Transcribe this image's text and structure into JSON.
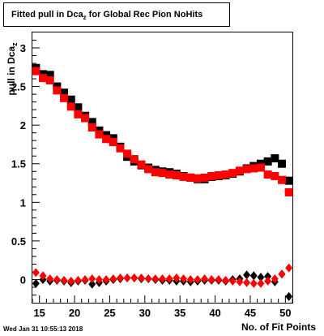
{
  "title_main": "Fitted pull in Dca",
  "title_sub": "z",
  "title_rest": " for Global Rec Pion NoHits",
  "ylabel_main": "pull in Dca",
  "ylabel_sub": "z",
  "xlabel": "No. of Fit Points",
  "timestamp": "Wed Jan 31 10:55:13 2018",
  "chart_data": {
    "type": "scatter",
    "title": "Fitted pull in Dca_z for Global Rec Pion NoHits",
    "xlabel": "No. of Fit Points",
    "ylabel": "pull in Dca_z",
    "xlim": [
      14,
      51
    ],
    "ylim": [
      -0.3,
      3.2
    ],
    "x_ticks": [
      15,
      20,
      25,
      30,
      35,
      40,
      45,
      50
    ],
    "y_ticks": [
      0,
      0.5,
      1,
      1.5,
      2,
      2.5,
      3
    ],
    "grid": false,
    "x": [
      14.5,
      15.5,
      16.5,
      17.5,
      18.5,
      19.5,
      20.5,
      21.5,
      22.5,
      23.5,
      24.5,
      25.5,
      26.5,
      27.5,
      28.5,
      29.5,
      30.5,
      31.5,
      32.5,
      33.5,
      34.5,
      35.5,
      36.5,
      37.5,
      38.5,
      39.5,
      40.5,
      41.5,
      42.5,
      43.5,
      44.5,
      45.5,
      46.5,
      47.5,
      48.5,
      49.5,
      50.5
    ],
    "series": [
      {
        "marker": "square",
        "color": "#000000",
        "values": [
          2.74,
          2.66,
          2.65,
          2.5,
          2.42,
          2.33,
          2.23,
          2.12,
          2.04,
          1.93,
          1.87,
          1.83,
          1.72,
          1.59,
          1.53,
          1.48,
          1.45,
          1.42,
          1.4,
          1.39,
          1.37,
          1.34,
          1.32,
          1.3,
          1.3,
          1.33,
          1.34,
          1.35,
          1.37,
          1.4,
          1.44,
          1.47,
          1.5,
          1.53,
          1.57,
          1.5,
          1.28
        ]
      },
      {
        "marker": "square",
        "color": "#ff0000",
        "values": [
          2.7,
          2.61,
          2.58,
          2.45,
          2.35,
          2.24,
          2.14,
          2.09,
          1.97,
          1.88,
          1.82,
          1.78,
          1.7,
          1.63,
          1.56,
          1.49,
          1.43,
          1.39,
          1.38,
          1.36,
          1.35,
          1.33,
          1.32,
          1.31,
          1.32,
          1.34,
          1.35,
          1.36,
          1.38,
          1.41,
          1.43,
          1.44,
          1.45,
          1.36,
          1.34,
          1.29,
          1.13
        ]
      },
      {
        "marker": "diamond",
        "color": "#000000",
        "values": [
          -0.05,
          0.0,
          -0.02,
          -0.01,
          -0.02,
          -0.04,
          -0.02,
          -0.01,
          -0.06,
          -0.04,
          -0.02,
          0.0,
          0.01,
          0.02,
          0.02,
          0.01,
          0.01,
          0.0,
          -0.01,
          -0.01,
          -0.02,
          -0.02,
          -0.03,
          -0.02,
          -0.01,
          -0.01,
          -0.01,
          -0.02,
          0.0,
          0.01,
          0.06,
          0.05,
          0.03,
          0.04,
          -0.03,
          0.07,
          -0.22
        ]
      },
      {
        "marker": "diamond",
        "color": "#ff0000",
        "values": [
          0.09,
          0.05,
          0.01,
          0.0,
          -0.01,
          -0.02,
          -0.01,
          0.0,
          0.01,
          0.0,
          0.0,
          0.01,
          0.02,
          0.02,
          0.02,
          0.02,
          0.01,
          0.01,
          0.01,
          0.01,
          0.02,
          0.01,
          0.0,
          0.0,
          0.01,
          0.0,
          0.0,
          -0.01,
          -0.02,
          -0.03,
          -0.04,
          -0.05,
          -0.05,
          -0.02,
          0.01,
          0.07,
          0.15
        ]
      }
    ]
  }
}
